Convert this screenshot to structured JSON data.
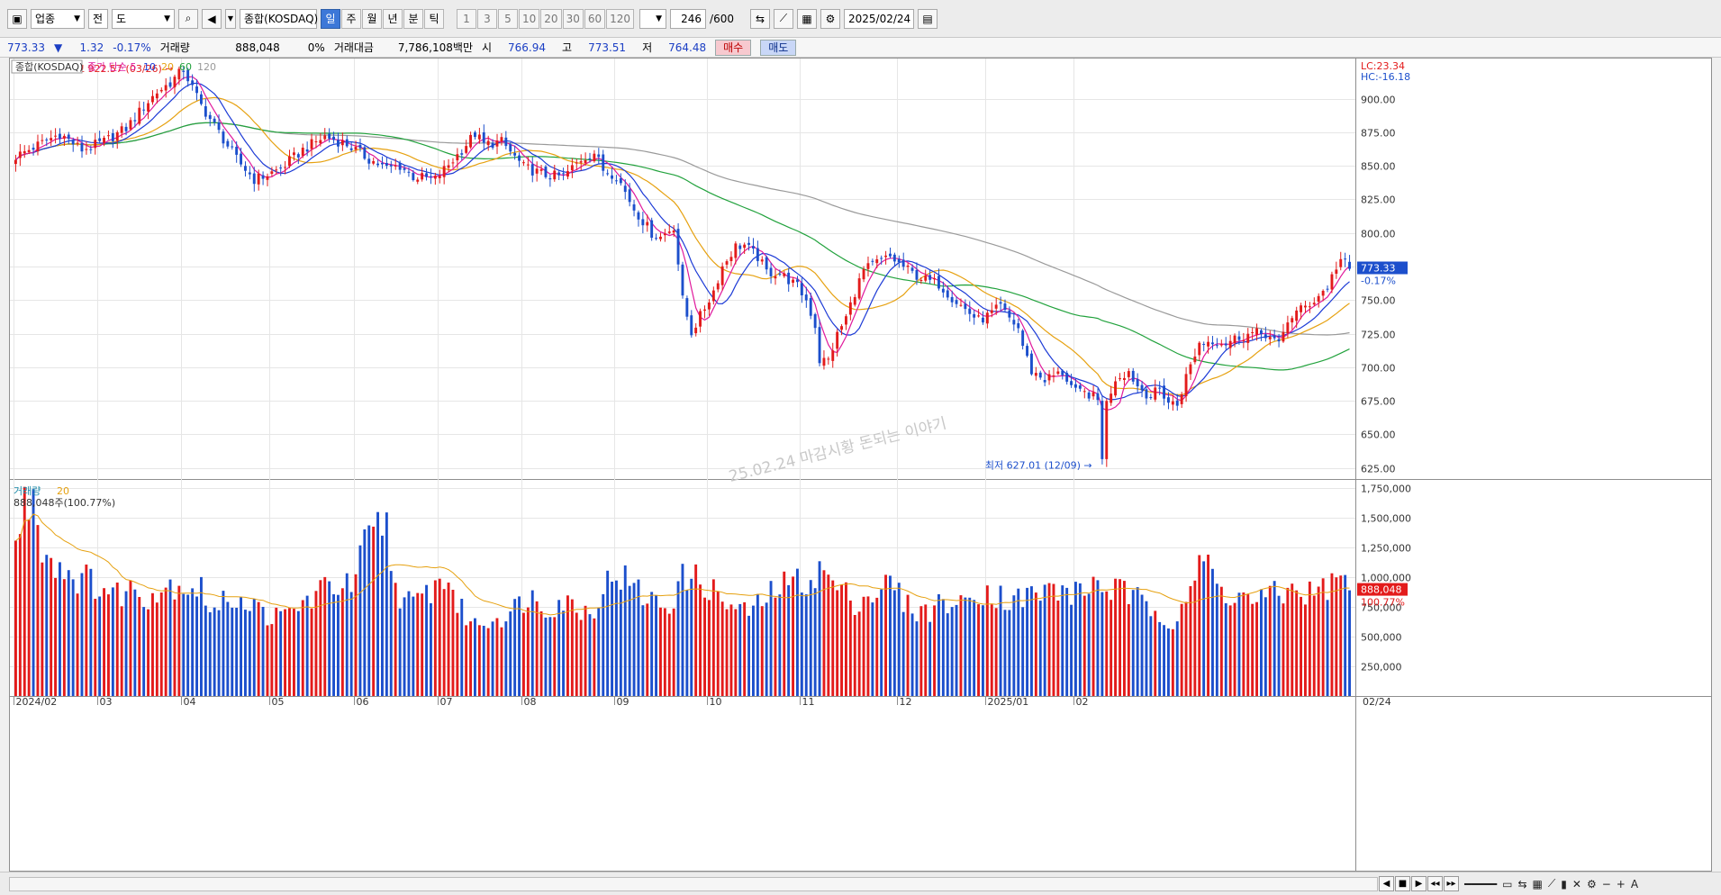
{
  "toolbar": {
    "category": "업종",
    "period_label": "전",
    "range_label": "도",
    "index_name": "종합(KOSDAQ)",
    "periods": [
      "일",
      "주",
      "월",
      "년",
      "분",
      "틱"
    ],
    "active_period": "일",
    "intervals": [
      "1",
      "3",
      "5",
      "10",
      "20",
      "30",
      "60",
      "120"
    ],
    "count": "246",
    "count_max": "/600",
    "date": "2025/02/24"
  },
  "quote": {
    "price": "773.33",
    "arrow": "▼",
    "change": "1.32",
    "change_pct": "-0.17%",
    "volume_label": "거래량",
    "volume": "888,048",
    "volume_pct": "0%",
    "amount_label": "거래대금",
    "amount": "7,786,108백만",
    "open_label": "시",
    "open": "766.94",
    "high_label": "고",
    "high": "773.51",
    "low_label": "저",
    "low": "764.48",
    "buy": "매수",
    "sell": "매도"
  },
  "colors": {
    "up": "#e31b1b",
    "down": "#1c4fcc",
    "ma5": "#e0199c",
    "ma10": "#1d3bd6",
    "ma20": "#e6a110",
    "ma60": "#22a23d",
    "ma120": "#9a9a9a",
    "vol_ma20": "#e6a110",
    "badge_bg": "#1c4fcc",
    "badge_vol_bg": "#e31b1b"
  },
  "chart_data": [
    {
      "type": "candlestick",
      "legend_name": "종합(KOSDAQ)",
      "legend_prefix": "종가 단순",
      "ma_periods": [
        "5",
        "10",
        "20",
        "60",
        "120"
      ],
      "right_top_lc": "LC:23.34",
      "right_top_hc": "HC:-16.18",
      "high_note": "최고 922.57 (03/26)",
      "low_note": "최저 627.01 (12/09)",
      "watermark": "25.02.24 마감시황 돈되는 이야기",
      "y_ticks": [
        "900.00",
        "875.00",
        "850.00",
        "825.00",
        "800.00",
        "775.00",
        "750.00",
        "725.00",
        "700.00",
        "675.00",
        "650.00",
        "625.00"
      ],
      "ylim": [
        618,
        930
      ],
      "last_price": "773.33",
      "last_pct": "-0.17%",
      "anchors": [
        [
          0,
          857
        ],
        [
          10,
          874
        ],
        [
          15,
          862
        ],
        [
          20,
          868
        ],
        [
          25,
          878
        ],
        [
          30,
          898
        ],
        [
          32,
          905
        ],
        [
          35,
          912
        ],
        [
          38,
          922
        ],
        [
          40,
          908
        ],
        [
          42,
          895
        ],
        [
          46,
          875
        ],
        [
          50,
          855
        ],
        [
          54,
          840
        ],
        [
          56,
          842
        ],
        [
          60,
          848
        ],
        [
          65,
          862
        ],
        [
          70,
          872
        ],
        [
          75,
          866
        ],
        [
          80,
          855
        ],
        [
          84,
          848
        ],
        [
          87,
          850
        ],
        [
          90,
          842
        ],
        [
          95,
          840
        ],
        [
          100,
          858
        ],
        [
          104,
          874
        ],
        [
          106,
          866
        ],
        [
          110,
          868
        ],
        [
          115,
          849
        ],
        [
          120,
          843
        ],
        [
          124,
          842
        ],
        [
          128,
          855
        ],
        [
          131,
          860
        ],
        [
          133,
          847
        ],
        [
          136,
          843
        ],
        [
          140,
          818
        ],
        [
          144,
          800
        ],
        [
          146,
          797
        ],
        [
          149,
          805
        ],
        [
          151,
          750
        ],
        [
          153,
          726
        ],
        [
          155,
          738
        ],
        [
          158,
          757
        ],
        [
          160,
          775
        ],
        [
          163,
          790
        ],
        [
          165,
          791
        ],
        [
          168,
          782
        ],
        [
          170,
          771
        ],
        [
          173,
          770
        ],
        [
          177,
          760
        ],
        [
          179,
          750
        ],
        [
          181,
          731
        ],
        [
          182,
          705
        ],
        [
          184,
          705
        ],
        [
          186,
          724
        ],
        [
          188,
          737
        ],
        [
          190,
          756
        ],
        [
          192,
          772
        ],
        [
          195,
          778
        ],
        [
          198,
          782
        ],
        [
          203,
          770
        ],
        [
          206,
          765
        ],
        [
          209,
          762
        ],
        [
          212,
          752
        ],
        [
          215,
          743
        ],
        [
          218,
          735
        ],
        [
          220,
          738
        ],
        [
          223,
          745
        ],
        [
          224,
          740
        ],
        [
          227,
          729
        ],
        [
          228,
          716
        ],
        [
          230,
          697
        ],
        [
          233,
          691
        ],
        [
          237,
          696
        ],
        [
          240,
          681
        ],
        [
          243,
          680
        ],
        [
          245,
          675
        ],
        [
          246,
          634
        ],
        [
          247,
          673
        ],
        [
          249,
          692
        ],
        [
          252,
          697
        ],
        [
          254,
          686
        ],
        [
          257,
          678
        ],
        [
          259,
          684
        ],
        [
          261,
          674
        ],
        [
          263,
          672
        ],
        [
          265,
          693
        ],
        [
          268,
          718
        ],
        [
          271,
          720
        ],
        [
          274,
          718
        ],
        [
          277,
          723
        ],
        [
          280,
          725
        ],
        [
          283,
          725
        ],
        [
          286,
          716
        ],
        [
          288,
          735
        ],
        [
          290,
          741
        ],
        [
          292,
          745
        ],
        [
          294,
          750
        ],
        [
          297,
          760
        ],
        [
          299,
          775
        ],
        [
          300,
          780
        ],
        [
          301,
          777
        ],
        [
          302,
          773.33
        ]
      ],
      "volume": {
        "legend_label": "거래량",
        "ma_label": "20",
        "info": "888,048주(100.77%)",
        "y_ticks": [
          "1,750,000",
          "1,500,000",
          "1,250,000",
          "1,000,000",
          "750,000",
          "500,000",
          "250,000"
        ],
        "ylim": [
          0,
          1800000
        ],
        "last_volume": "888,048",
        "last_pct": "100.77%",
        "anchors": [
          [
            0,
            1250000
          ],
          [
            2,
            1600000
          ],
          [
            4,
            1700000
          ],
          [
            6,
            1300000
          ],
          [
            8,
            1150000
          ],
          [
            10,
            1100000
          ],
          [
            14,
            1000000
          ],
          [
            18,
            950000
          ],
          [
            22,
            850000
          ],
          [
            26,
            900000
          ],
          [
            30,
            850000
          ],
          [
            36,
            950000
          ],
          [
            42,
            900000
          ],
          [
            44,
            750000
          ],
          [
            46,
            700000
          ],
          [
            48,
            850000
          ],
          [
            52,
            800000
          ],
          [
            56,
            700000
          ],
          [
            60,
            650000
          ],
          [
            64,
            750000
          ],
          [
            68,
            850000
          ],
          [
            72,
            950000
          ],
          [
            76,
            900000
          ],
          [
            79,
            1250000
          ],
          [
            82,
            1400000
          ],
          [
            84,
            1450000
          ],
          [
            86,
            900000
          ],
          [
            90,
            750000
          ],
          [
            94,
            900000
          ],
          [
            98,
            1000000
          ],
          [
            100,
            750000
          ],
          [
            104,
            600000
          ],
          [
            108,
            650000
          ],
          [
            112,
            700000
          ],
          [
            116,
            850000
          ],
          [
            120,
            750000
          ],
          [
            124,
            800000
          ],
          [
            130,
            700000
          ],
          [
            134,
            950000
          ],
          [
            136,
            1050000
          ],
          [
            140,
            900000
          ],
          [
            144,
            800000
          ],
          [
            148,
            750000
          ],
          [
            150,
            950000
          ],
          [
            152,
            1000000
          ],
          [
            156,
            950000
          ],
          [
            160,
            800000
          ],
          [
            164,
            700000
          ],
          [
            168,
            750000
          ],
          [
            172,
            900000
          ],
          [
            176,
            950000
          ],
          [
            180,
            1000000
          ],
          [
            183,
            1050000
          ],
          [
            186,
            900000
          ],
          [
            190,
            800000
          ],
          [
            194,
            850000
          ],
          [
            198,
            950000
          ],
          [
            202,
            750000
          ],
          [
            206,
            700000
          ],
          [
            210,
            800000
          ],
          [
            214,
            750000
          ],
          [
            218,
            900000
          ],
          [
            222,
            850000
          ],
          [
            226,
            800000
          ],
          [
            230,
            850000
          ],
          [
            236,
            900000
          ],
          [
            240,
            850000
          ],
          [
            244,
            950000
          ],
          [
            248,
            900000
          ],
          [
            252,
            850000
          ],
          [
            256,
            750000
          ],
          [
            260,
            700000
          ],
          [
            262,
            600000
          ],
          [
            264,
            800000
          ],
          [
            266,
            900000
          ],
          [
            268,
            1050000
          ],
          [
            270,
            1150000
          ],
          [
            272,
            900000
          ],
          [
            276,
            850000
          ],
          [
            280,
            800000
          ],
          [
            286,
            850000
          ],
          [
            290,
            900000
          ],
          [
            294,
            850000
          ],
          [
            298,
            950000
          ],
          [
            300,
            980000
          ],
          [
            302,
            888048
          ]
        ]
      },
      "x_labels": [
        "2024/02",
        "03",
        "04",
        "05",
        "06",
        "07",
        "08",
        "09",
        "10",
        "11",
        "12",
        "2025/01",
        "02",
        "02/24"
      ]
    }
  ]
}
